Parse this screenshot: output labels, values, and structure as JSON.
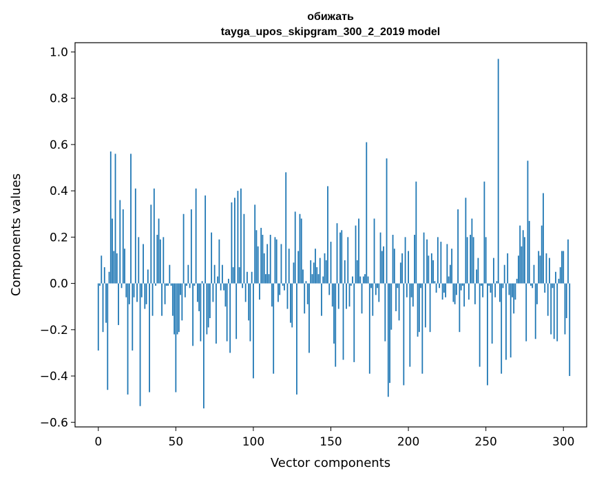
{
  "chart_data": {
    "type": "bar",
    "title": "обижать",
    "subtitle": "tayga_upos_skipgram_300_2_2019 model",
    "xlabel": "Vector components",
    "ylabel": "Components values",
    "xlim": [
      -15,
      315
    ],
    "ylim": [
      -0.62,
      1.04
    ],
    "xticks": [
      0,
      50,
      100,
      150,
      200,
      250,
      300
    ],
    "xtick_labels": [
      "0",
      "50",
      "100",
      "150",
      "200",
      "250",
      "300"
    ],
    "yticks": [
      -0.6,
      -0.4,
      -0.2,
      0.0,
      0.2,
      0.4,
      0.6,
      0.8,
      1.0
    ],
    "ytick_labels": [
      "−0.6",
      "−0.4",
      "−0.2",
      "0.0",
      "0.2",
      "0.4",
      "0.6",
      "0.8",
      "1.0"
    ],
    "grid": false,
    "bar_color": "#1f77b4",
    "values": [
      -0.29,
      -0.01,
      0.12,
      -0.21,
      0.07,
      -0.17,
      -0.46,
      0.05,
      0.57,
      0.28,
      0.14,
      0.56,
      0.13,
      -0.18,
      0.36,
      -0.02,
      0.32,
      0.15,
      -0.06,
      -0.48,
      -0.09,
      0.56,
      -0.29,
      -0.06,
      0.41,
      -0.08,
      0.2,
      -0.53,
      -0.06,
      0.17,
      -0.11,
      -0.09,
      0.06,
      -0.47,
      0.34,
      -0.14,
      0.41,
      -0.01,
      0.21,
      0.28,
      0.19,
      -0.14,
      0.2,
      -0.09,
      -0.01,
      -0.01,
      0.08,
      -0.01,
      -0.14,
      -0.22,
      -0.47,
      -0.22,
      -0.21,
      -0.05,
      -0.16,
      0.3,
      -0.06,
      -0.01,
      0.08,
      -0.02,
      0.32,
      -0.27,
      -0.01,
      0.41,
      -0.08,
      -0.12,
      -0.25,
      0.01,
      -0.54,
      0.38,
      -0.22,
      -0.19,
      -0.15,
      0.22,
      -0.08,
      0.08,
      -0.26,
      0.03,
      0.19,
      -0.03,
      0.08,
      -0.03,
      -0.1,
      -0.25,
      0.02,
      -0.3,
      0.35,
      0.07,
      0.37,
      -0.24,
      0.4,
      0.07,
      0.41,
      -0.02,
      0.3,
      -0.08,
      0.05,
      -0.16,
      -0.25,
      0.05,
      -0.41,
      0.34,
      0.23,
      0.16,
      -0.07,
      0.24,
      0.21,
      0.13,
      0.04,
      0.17,
      0.04,
      0.21,
      -0.1,
      -0.39,
      0.2,
      0.19,
      -0.08,
      -0.05,
      0.17,
      -0.01,
      -0.03,
      0.48,
      -0.11,
      0.15,
      -0.17,
      -0.19,
      0.09,
      0.31,
      -0.48,
      0.14,
      0.3,
      0.28,
      0.06,
      -0.13,
      0.01,
      -0.09,
      -0.3,
      0.1,
      0.04,
      0.09,
      0.15,
      0.07,
      0.04,
      0.11,
      -0.14,
      0.03,
      0.13,
      0.1,
      0.42,
      -0.05,
      0.18,
      -0.1,
      -0.26,
      -0.36,
      0.26,
      -0.11,
      0.22,
      0.23,
      -0.33,
      0.1,
      -0.11,
      0.2,
      -0.1,
      -0.01,
      0.03,
      -0.34,
      0.25,
      0.1,
      0.28,
      0.03,
      -0.13,
      0.03,
      0.04,
      0.61,
      0.03,
      -0.39,
      -0.02,
      -0.14,
      0.28,
      -0.05,
      -0.02,
      -0.08,
      0.22,
      0.14,
      0.16,
      -0.25,
      0.54,
      -0.49,
      -0.43,
      -0.2,
      0.21,
      0.15,
      -0.12,
      -0.02,
      -0.16,
      0.09,
      0.13,
      -0.44,
      0.2,
      -0.06,
      0.14,
      -0.36,
      -0.06,
      -0.1,
      0.21,
      0.44,
      -0.23,
      -0.21,
      -0.02,
      -0.39,
      0.22,
      -0.19,
      0.19,
      0.12,
      -0.21,
      0.13,
      0.1,
      0.01,
      -0.04,
      0.2,
      -0.02,
      0.18,
      -0.07,
      -0.04,
      -0.06,
      0.17,
      0.03,
      0.08,
      0.15,
      -0.08,
      -0.09,
      -0.05,
      0.32,
      -0.21,
      -0.03,
      -0.01,
      -0.1,
      0.37,
      0.2,
      -0.07,
      0.21,
      0.28,
      0.2,
      -0.09,
      0.06,
      0.11,
      -0.36,
      -0.01,
      -0.06,
      0.44,
      0.2,
      -0.44,
      -0.01,
      -0.04,
      -0.26,
      0.11,
      -0.06,
      0.01,
      0.97,
      -0.08,
      -0.39,
      -0.02,
      0.08,
      -0.33,
      0.13,
      -0.05,
      -0.32,
      -0.06,
      -0.13,
      -0.07,
      0.02,
      0.12,
      0.25,
      0.16,
      0.23,
      0.2,
      -0.25,
      0.53,
      0.27,
      -0.01,
      -0.02,
      0.08,
      -0.24,
      -0.09,
      0.14,
      0.12,
      0.25,
      0.39,
      -0.04,
      0.13,
      -0.14,
      0.11,
      -0.22,
      -0.02,
      -0.24,
      0.05,
      -0.25,
      0.02,
      0.07,
      0.14,
      0.14,
      -0.22,
      -0.15,
      0.19,
      -0.4
    ]
  }
}
